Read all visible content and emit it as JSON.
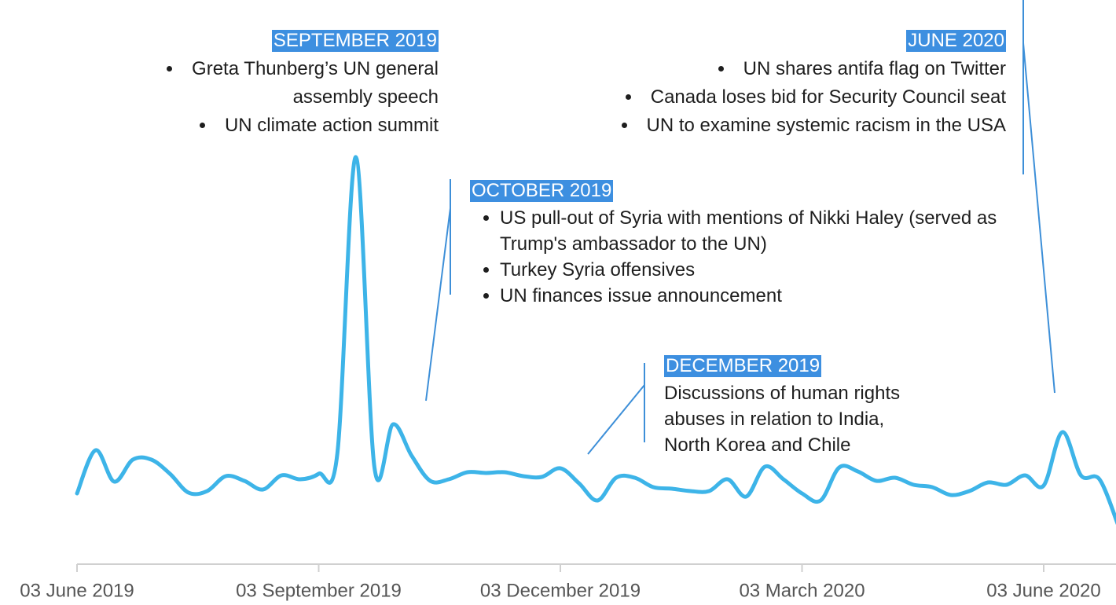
{
  "chart_data": {
    "type": "line",
    "categories": [
      "03 June 2019",
      null,
      null,
      null,
      null,
      null,
      null,
      null,
      null,
      null,
      null,
      null,
      null,
      "03 September 2019",
      null,
      null,
      null,
      null,
      null,
      null,
      null,
      null,
      null,
      null,
      null,
      null,
      "03 December 2019",
      null,
      null,
      null,
      null,
      null,
      null,
      null,
      null,
      null,
      null,
      null,
      null,
      "03 March 2020",
      null,
      null,
      null,
      null,
      null,
      null,
      null,
      null,
      null,
      null,
      null,
      null,
      "03 June 2020",
      null,
      null,
      null,
      null
    ],
    "series": [
      {
        "color": "#3db4e8",
        "values": [
          14.4,
          25.4,
          17.4,
          23,
          23,
          19.4,
          14.6,
          15,
          18.8,
          17.6,
          15.4,
          19,
          18,
          19.4,
          24.4,
          100,
          21,
          32,
          24,
          17.6,
          18,
          19.8,
          19.6,
          19.8,
          18.8,
          18.6,
          20.8,
          17,
          12.6,
          18.4,
          18.4,
          16,
          15.6,
          15,
          15,
          18,
          13.6,
          21.2,
          18,
          14.4,
          12.6,
          21,
          20,
          17.6,
          18.4,
          16.6,
          16,
          14,
          15,
          17.2,
          16.6,
          19,
          16.4,
          30,
          19,
          18,
          6.4
        ]
      }
    ],
    "ylim": [
      0,
      110
    ],
    "annotations": [
      {
        "title": "SEPTEMBER 2019",
        "items": [
          "Greta Thunberg’s UN general assembly speech",
          "UN climate action summit"
        ]
      },
      {
        "title": "OCTOBER 2019",
        "items": [
          "US pull-out of Syria with mentions of Nikki Haley (served as Trump's ambassador to the UN)",
          "Turkey Syria offensives",
          "UN finances issue announcement"
        ]
      },
      {
        "title": "DECEMBER 2019",
        "lines": [
          "Discussions of human rights",
          "abuses in relation to India,",
          "North Korea and Chile"
        ]
      },
      {
        "title": "JUNE 2020",
        "items": [
          "UN shares antifa flag on Twitter",
          "Canada loses bid for Security Council seat",
          "UN to examine systemic racism in the USA"
        ]
      }
    ]
  }
}
